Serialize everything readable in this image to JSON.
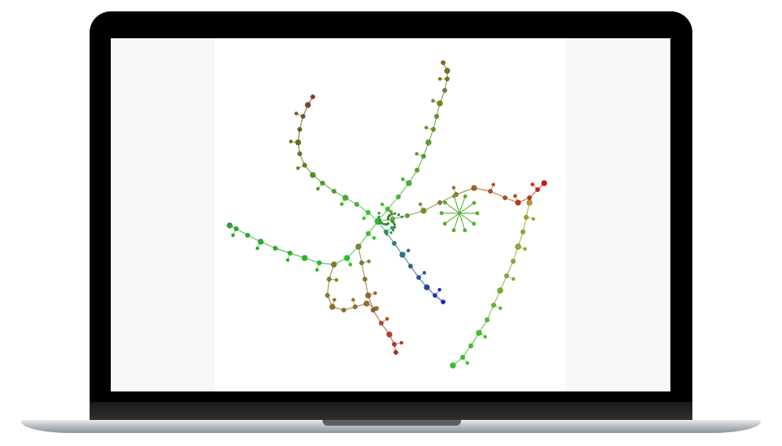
{
  "colors": {
    "bezel": "#000000",
    "screen_bg": "#f7f7f7",
    "canvas_bg": "#ffffff",
    "base": "#b9c0c6"
  },
  "diagram": {
    "type": "network-graph",
    "branches": [
      {
        "name": "north-branch",
        "color_from": "#2ecc2e",
        "color_to": "#8a6a14"
      },
      {
        "name": "northwest-branch",
        "color_from": "#22dd22",
        "color_to": "#8a3a1a"
      },
      {
        "name": "east-branch",
        "color_from": "#6ab02a",
        "color_to": "#dd1111"
      },
      {
        "name": "southeast-branch",
        "color_from": "#b0a020",
        "color_to": "#22cc22"
      },
      {
        "name": "south-branch",
        "color_from": "#22aa66",
        "color_to": "#2222cc"
      },
      {
        "name": "west-branch",
        "color_from": "#22cc22",
        "color_to": "#cc2222"
      }
    ]
  }
}
